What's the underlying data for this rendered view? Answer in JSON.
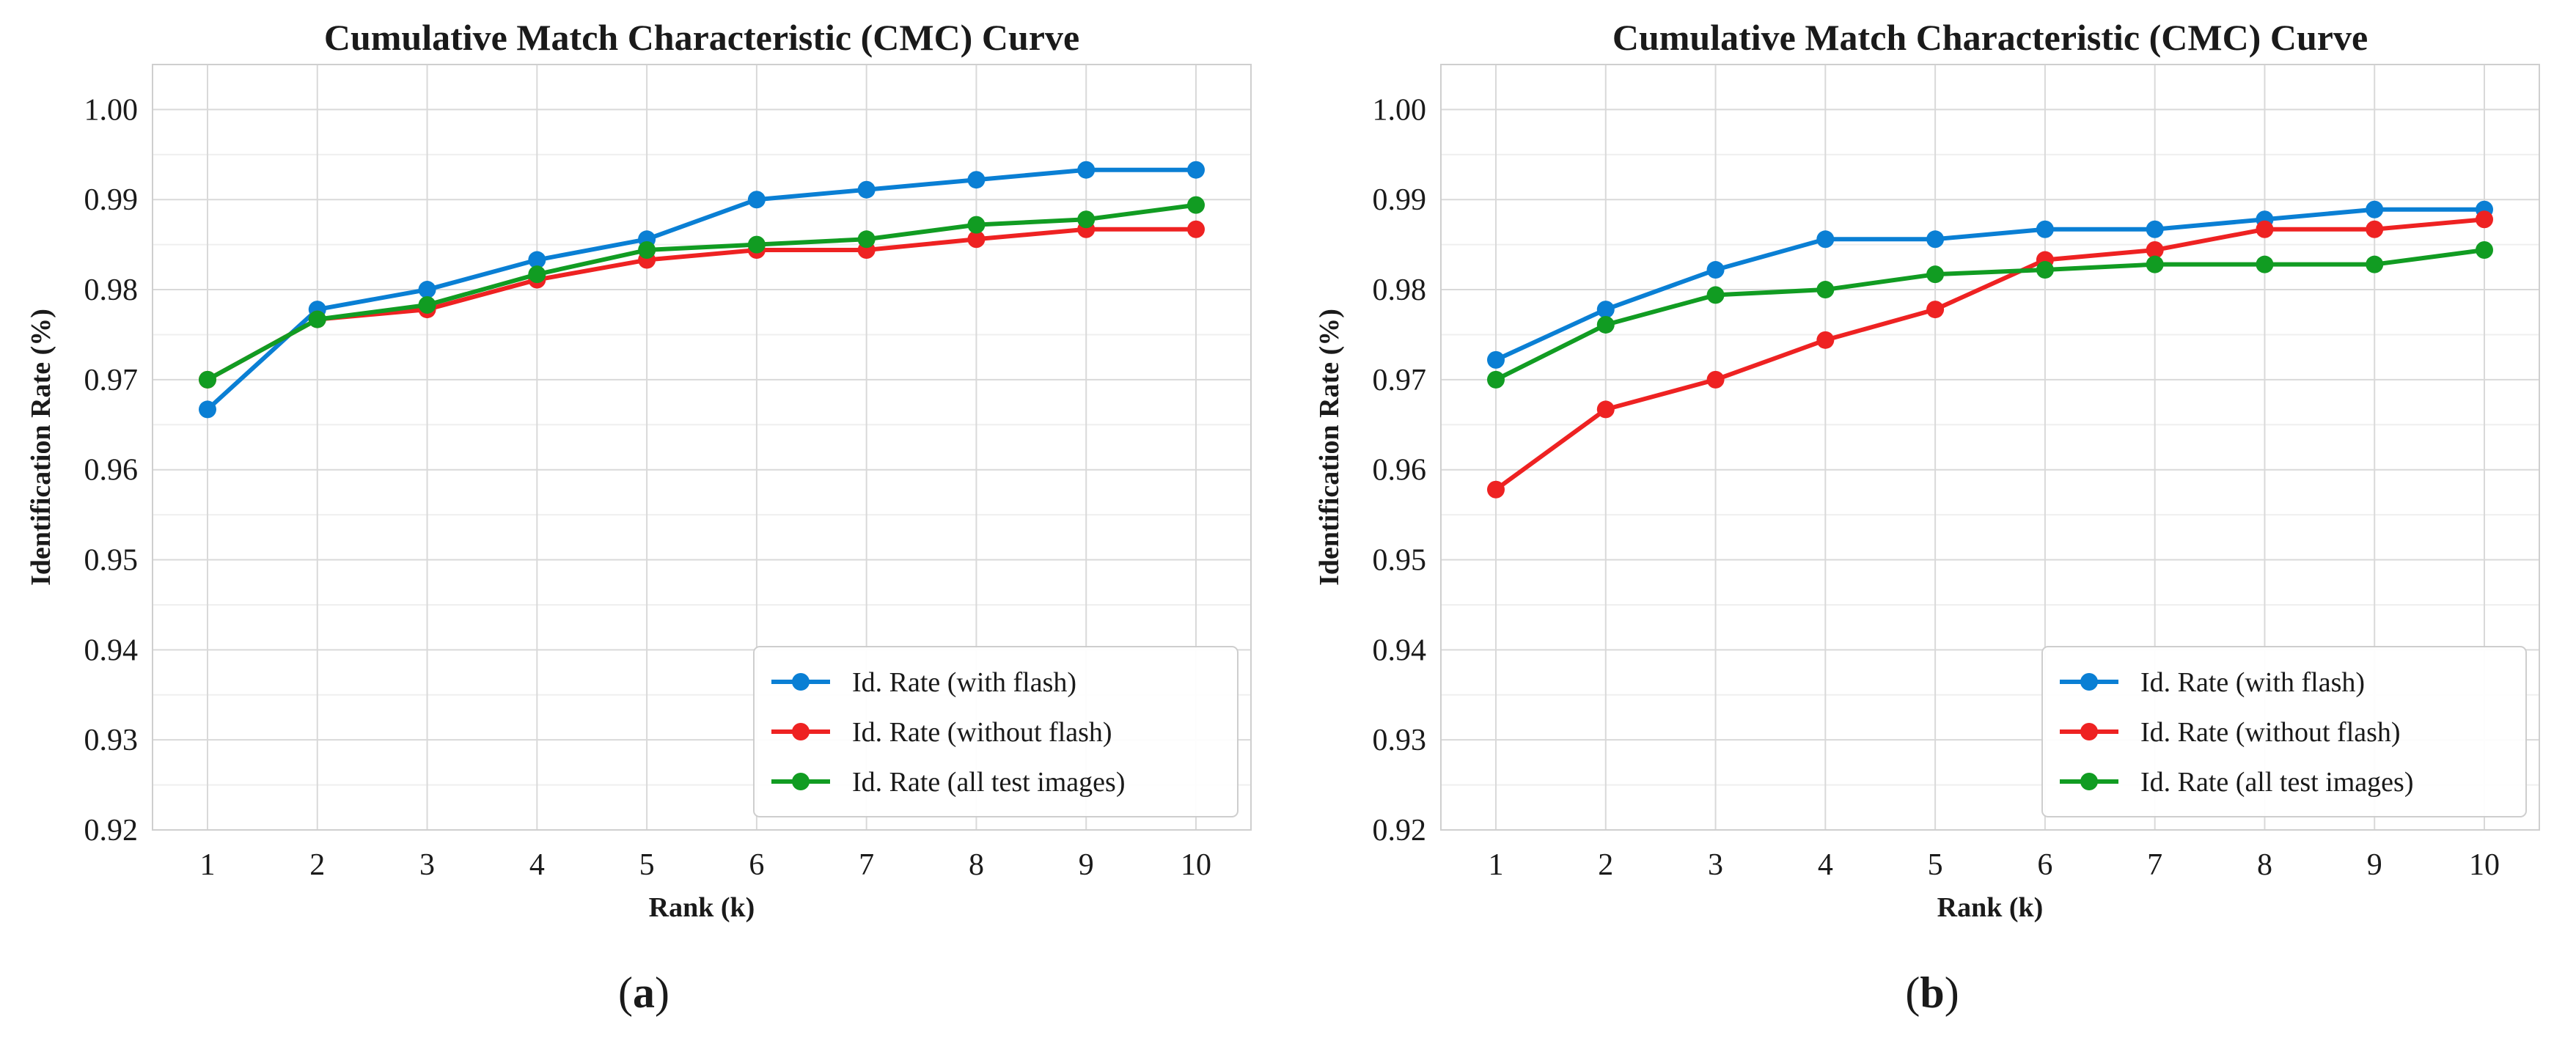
{
  "colors": {
    "with_flash": "#0a7fd4",
    "without_flash": "#ee2222",
    "all_test_images": "#119c22",
    "grid": "#d9d9d9",
    "grid_minor": "#efefef",
    "frame": "#cfcfcf"
  },
  "chart_data": [
    {
      "type": "line",
      "panel": "a",
      "caption_prefix": "(",
      "caption_letter": "a",
      "caption_suffix": ")",
      "title": "Cumulative Match Characteristic (CMC) Curve",
      "xlabel": "Rank (k)",
      "ylabel": "Identification Rate (%)",
      "x": [
        1,
        2,
        3,
        4,
        5,
        6,
        7,
        8,
        9,
        10
      ],
      "x_tick_labels": [
        "1",
        "2",
        "3",
        "4",
        "5",
        "6",
        "7",
        "8",
        "9",
        "10"
      ],
      "ylim": [
        0.92,
        1.005
      ],
      "y_ticks": [
        0.92,
        0.93,
        0.94,
        0.95,
        0.96,
        0.97,
        0.98,
        0.99,
        1.0
      ],
      "y_tick_labels": [
        "0.92",
        "0.93",
        "0.94",
        "0.95",
        "0.96",
        "0.97",
        "0.98",
        "0.99",
        "1.00"
      ],
      "legend_position": "lower-right",
      "series": [
        {
          "name": "Id. Rate (with flash)",
          "color_key": "with_flash",
          "values": [
            0.9667,
            0.9778,
            0.98,
            0.9833,
            0.9856,
            0.99,
            0.9911,
            0.9922,
            0.9933,
            0.9933
          ]
        },
        {
          "name": "Id. Rate (without flash)",
          "color_key": "without_flash",
          "values": [
            0.97,
            0.9767,
            0.9778,
            0.9811,
            0.9833,
            0.9844,
            0.9844,
            0.9856,
            0.9867,
            0.9867
          ]
        },
        {
          "name": "Id. Rate (all test images)",
          "color_key": "all_test_images",
          "values": [
            0.97,
            0.9767,
            0.9783,
            0.9817,
            0.9844,
            0.985,
            0.9856,
            0.9872,
            0.9878,
            0.9894
          ]
        }
      ]
    },
    {
      "type": "line",
      "panel": "b",
      "caption_prefix": "(",
      "caption_letter": "b",
      "caption_suffix": ")",
      "title": "Cumulative Match Characteristic (CMC) Curve",
      "xlabel": "Rank (k)",
      "ylabel": "Identification Rate (%)",
      "x": [
        1,
        2,
        3,
        4,
        5,
        6,
        7,
        8,
        9,
        10
      ],
      "x_tick_labels": [
        "1",
        "2",
        "3",
        "4",
        "5",
        "6",
        "7",
        "8",
        "9",
        "10"
      ],
      "ylim": [
        0.92,
        1.005
      ],
      "y_ticks": [
        0.92,
        0.93,
        0.94,
        0.95,
        0.96,
        0.97,
        0.98,
        0.99,
        1.0
      ],
      "y_tick_labels": [
        "0.92",
        "0.93",
        "0.94",
        "0.95",
        "0.96",
        "0.97",
        "0.98",
        "0.99",
        "1.00"
      ],
      "legend_position": "lower-right",
      "series": [
        {
          "name": "Id. Rate (with flash)",
          "color_key": "with_flash",
          "values": [
            0.9722,
            0.9778,
            0.9822,
            0.9856,
            0.9856,
            0.9867,
            0.9867,
            0.9878,
            0.9889,
            0.9889
          ]
        },
        {
          "name": "Id. Rate (without flash)",
          "color_key": "without_flash",
          "values": [
            0.9578,
            0.9667,
            0.97,
            0.9744,
            0.9778,
            0.9833,
            0.9844,
            0.9867,
            0.9867,
            0.9878
          ]
        },
        {
          "name": "Id. Rate (all test images)",
          "color_key": "all_test_images",
          "values": [
            0.97,
            0.9761,
            0.9794,
            0.98,
            0.9817,
            0.9822,
            0.9828,
            0.9828,
            0.9828,
            0.9844
          ]
        }
      ]
    }
  ]
}
